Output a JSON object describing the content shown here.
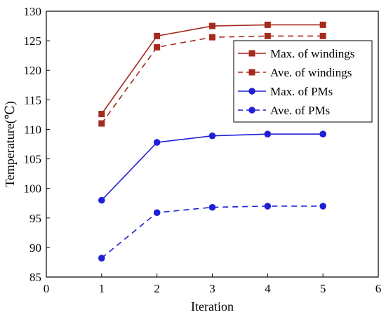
{
  "chart_data": {
    "type": "line",
    "title": "",
    "xlabel": "Iteration",
    "ylabel": "Temperature(℃)",
    "xlim": [
      0,
      6
    ],
    "ylim": [
      85,
      130
    ],
    "xticks": [
      "0",
      "1",
      "2",
      "3",
      "4",
      "5",
      "6"
    ],
    "yticks": [
      "85",
      "90",
      "95",
      "100",
      "105",
      "110",
      "115",
      "120",
      "125",
      "130"
    ],
    "grid": false,
    "legend_position": "top-right",
    "x": [
      1,
      2,
      3,
      4,
      5
    ],
    "series": [
      {
        "name": "Max. of windings",
        "values": [
          112.6,
          125.8,
          127.5,
          127.7,
          127.7
        ],
        "color": "#a52a1e",
        "marker": "square",
        "line": "solid"
      },
      {
        "name": "Ave. of windings",
        "values": [
          111.0,
          123.9,
          125.6,
          125.8,
          125.8
        ],
        "color": "#a52a1e",
        "marker": "square",
        "line": "dashed"
      },
      {
        "name": "Max. of PMs",
        "values": [
          98.0,
          107.8,
          108.9,
          109.2,
          109.2
        ],
        "color": "#1f1fd6",
        "marker": "circle",
        "line": "solid"
      },
      {
        "name": "Ave. of PMs",
        "values": [
          88.2,
          95.9,
          96.8,
          97.0,
          97.0
        ],
        "color": "#1f1fd6",
        "marker": "circle",
        "line": "dashed"
      }
    ]
  }
}
